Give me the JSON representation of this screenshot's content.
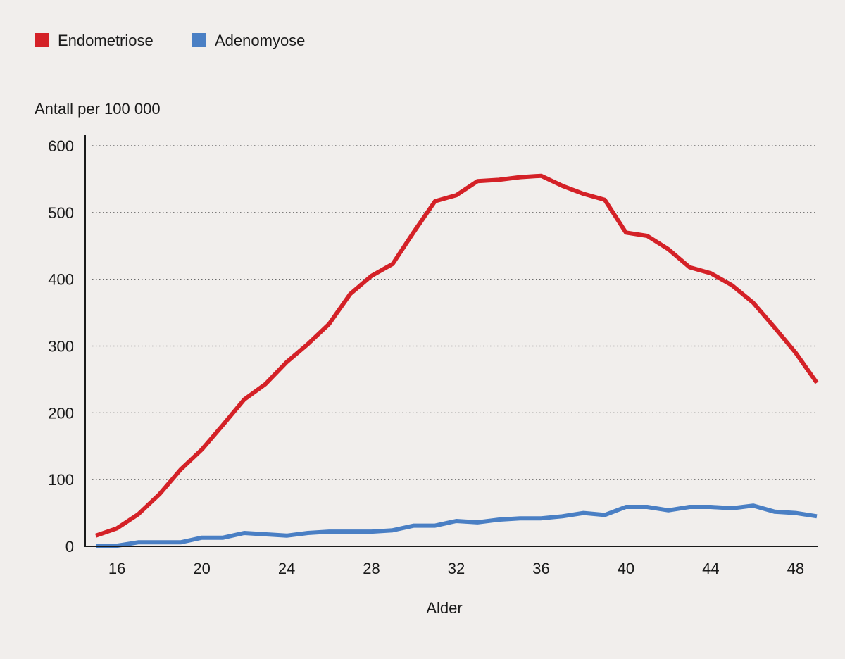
{
  "chart_data": {
    "type": "line",
    "ylabel": "Antall per 100 000",
    "xlabel": "Alder",
    "xlim": [
      15,
      49
    ],
    "ylim": [
      0,
      600
    ],
    "xticks": [
      16,
      20,
      24,
      28,
      32,
      36,
      40,
      44,
      48
    ],
    "yticks": [
      0,
      100,
      200,
      300,
      400,
      500,
      600
    ],
    "grid": "horizontal-dotted",
    "legend_position": "top-left",
    "x": [
      15,
      16,
      17,
      18,
      19,
      20,
      21,
      22,
      23,
      24,
      25,
      26,
      27,
      28,
      29,
      30,
      31,
      32,
      33,
      34,
      35,
      36,
      37,
      38,
      39,
      40,
      41,
      42,
      43,
      44,
      45,
      46,
      47,
      48,
      49
    ],
    "series": [
      {
        "name": "Endometriose",
        "color": "#d42127",
        "values": [
          16,
          27,
          48,
          78,
          115,
          145,
          182,
          220,
          243,
          276,
          303,
          333,
          378,
          405,
          423,
          471,
          517,
          526,
          547,
          549,
          553,
          555,
          540,
          528,
          519,
          470,
          465,
          445,
          418,
          409,
          391,
          365,
          328,
          290,
          245
        ]
      },
      {
        "name": "Adenomyose",
        "color": "#4a7fc4",
        "values": [
          1,
          1,
          6,
          6,
          6,
          13,
          13,
          20,
          18,
          16,
          20,
          22,
          22,
          22,
          24,
          31,
          31,
          38,
          36,
          40,
          42,
          42,
          45,
          50,
          47,
          59,
          59,
          54,
          59,
          59,
          57,
          61,
          52,
          50,
          45
        ]
      }
    ]
  }
}
